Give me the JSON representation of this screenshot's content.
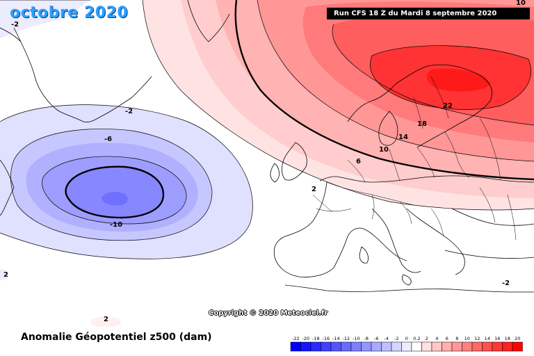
{
  "header": {
    "title": "octobre 2020",
    "run_info": "Run CFS 18 Z du Mardi 8 septembre 2020",
    "top_right_value": "10"
  },
  "footer": {
    "copyright": "Copyright © 2020 Meteociel.fr",
    "parameter": "Anomalie Géopotentiel z500 (dam)"
  },
  "contour_labels": [
    {
      "id": "neg-2-nw",
      "text": "-2"
    },
    {
      "id": "neg-2-atl",
      "text": "-2"
    },
    {
      "id": "neg-6",
      "text": "-6"
    },
    {
      "id": "neg-10",
      "text": "-10"
    },
    {
      "id": "pos-22",
      "text": "22"
    },
    {
      "id": "pos-18",
      "text": "18"
    },
    {
      "id": "pos-14",
      "text": "14"
    },
    {
      "id": "pos-10",
      "text": "10"
    },
    {
      "id": "pos-6",
      "text": "6"
    },
    {
      "id": "pos-2-north",
      "text": "2"
    },
    {
      "id": "neg-2-east",
      "text": "-2"
    },
    {
      "id": "pos-2-west",
      "text": "2"
    },
    {
      "id": "pos-2-south",
      "text": "2"
    }
  ],
  "legend": {
    "ticks": [
      "-22",
      "-20",
      "-18",
      "-16",
      "-14",
      "-12",
      "-10",
      "-8",
      "-6",
      "-4",
      "-2",
      "0",
      "0.2",
      "2",
      "4",
      "6",
      "8",
      "10",
      "12",
      "14",
      "16",
      "18",
      "20"
    ],
    "colors": [
      "#0000ff",
      "#1515ff",
      "#2a2aff",
      "#4040ff",
      "#5555ff",
      "#6a6aff",
      "#7f7fff",
      "#9595ff",
      "#aaaaff",
      "#bfbfff",
      "#d5d5ff",
      "#ececff",
      "#ffffff",
      "#ffe0e0",
      "#ffc8c8",
      "#ffb0b0",
      "#ff9898",
      "#ff8080",
      "#ff6868",
      "#ff5050",
      "#ff3838",
      "#ff2020",
      "#ff0000"
    ]
  }
}
